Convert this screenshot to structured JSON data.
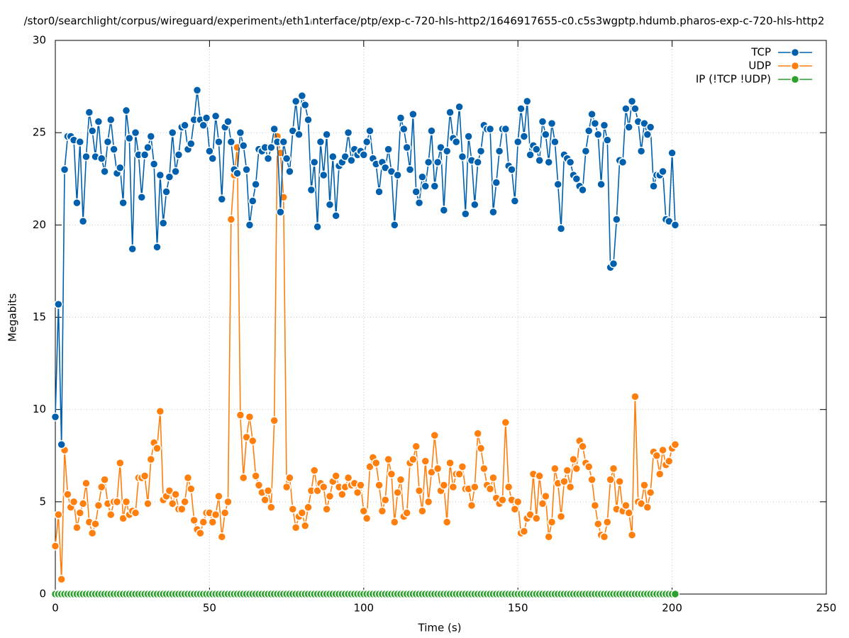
{
  "chart_data": {
    "type": "line",
    "title": "/stor0/searchlight/corpus/wireguard/experiment₃/eth1ᵢnterface/ptp/exp-c-720-hls-http2/1646917655-c0.c5s3wgptp.hdumb.pharos-exp-c-720-hls-http2",
    "x_label": "Time (s)",
    "y_label": "Megabits",
    "x": [
      0,
      1,
      2,
      3,
      4,
      5,
      6,
      7,
      8,
      9,
      10,
      11,
      12,
      13,
      14,
      15,
      16,
      17,
      18,
      19,
      20,
      21,
      22,
      23,
      24,
      25,
      26,
      27,
      28,
      29,
      30,
      31,
      32,
      33,
      34,
      35,
      36,
      37,
      38,
      39,
      40,
      41,
      42,
      43,
      44,
      45,
      46,
      47,
      48,
      49,
      50,
      51,
      52,
      53,
      54,
      55,
      56,
      57,
      58,
      59,
      60,
      61,
      62,
      63,
      64,
      65,
      66,
      67,
      68,
      69,
      70,
      71,
      72,
      73,
      74,
      75,
      76,
      77,
      78,
      79,
      80,
      81,
      82,
      83,
      84,
      85,
      86,
      87,
      88,
      89,
      90,
      91,
      92,
      93,
      94,
      95,
      96,
      97,
      98,
      99,
      100,
      101,
      102,
      103,
      104,
      105,
      106,
      107,
      108,
      109,
      110,
      111,
      112,
      113,
      114,
      115,
      116,
      117,
      118,
      119,
      120,
      121,
      122,
      123,
      124,
      125,
      126,
      127,
      128,
      129,
      130,
      131,
      132,
      133,
      134,
      135,
      136,
      137,
      138,
      139,
      140,
      141,
      142,
      143,
      144,
      145,
      146,
      147,
      148,
      149,
      150,
      151,
      152,
      153,
      154,
      155,
      156,
      157,
      158,
      159,
      160,
      161,
      162,
      163,
      164,
      165,
      166,
      167,
      168,
      169,
      170,
      171,
      172,
      173,
      174,
      175,
      176,
      177,
      178,
      179,
      180,
      181,
      182,
      183,
      184,
      185,
      186,
      187,
      188,
      189,
      190,
      191,
      192,
      193,
      194,
      195,
      196,
      197,
      198,
      199,
      200,
      201
    ],
    "series": [
      {
        "name": "TCP",
        "color": "#0060ad",
        "values": [
          9.6,
          15.7,
          8.1,
          23.0,
          24.8,
          24.8,
          24.6,
          21.2,
          24.5,
          20.2,
          23.7,
          26.1,
          25.1,
          23.7,
          25.6,
          23.6,
          22.9,
          24.5,
          25.7,
          24.1,
          22.8,
          23.1,
          21.2,
          26.2,
          24.7,
          18.7,
          25.0,
          23.8,
          21.5,
          23.8,
          24.2,
          24.8,
          23.3,
          18.8,
          22.7,
          20.1,
          21.8,
          22.6,
          25.0,
          22.9,
          23.8,
          25.3,
          25.4,
          24.1,
          24.4,
          25.7,
          27.3,
          25.7,
          25.4,
          25.8,
          24.0,
          23.6,
          25.9,
          24.5,
          21.4,
          25.3,
          25.6,
          24.5,
          23.0,
          22.8,
          25.0,
          24.3,
          23.0,
          20.0,
          21.3,
          22.2,
          24.1,
          24.0,
          24.2,
          23.6,
          24.2,
          25.2,
          24.5,
          20.7,
          24.5,
          23.6,
          22.9,
          25.1,
          26.7,
          24.9,
          27.0,
          26.5,
          25.7,
          21.9,
          23.4,
          19.9,
          24.5,
          22.7,
          24.9,
          21.1,
          23.7,
          20.5,
          23.2,
          23.4,
          23.7,
          25.0,
          23.5,
          24.1,
          23.8,
          24.0,
          23.8,
          24.5,
          25.1,
          23.6,
          23.3,
          21.8,
          23.4,
          23.1,
          24.1,
          22.9,
          20.0,
          22.7,
          25.8,
          25.2,
          24.2,
          23.0,
          26.0,
          21.8,
          21.2,
          22.6,
          22.1,
          23.4,
          25.1,
          22.1,
          23.4,
          24.2,
          20.8,
          24.0,
          26.1,
          24.7,
          24.5,
          26.4,
          23.7,
          20.6,
          24.8,
          23.5,
          21.1,
          23.4,
          24.0,
          25.4,
          25.2,
          25.2,
          20.7,
          22.3,
          24.0,
          25.2,
          25.2,
          23.2,
          23.0,
          21.3,
          24.5,
          26.3,
          24.8,
          26.7,
          23.8,
          24.3,
          24.1,
          23.5,
          25.6,
          24.9,
          23.4,
          25.5,
          24.5,
          22.2,
          19.8,
          23.8,
          23.6,
          23.4,
          22.7,
          22.5,
          22.1,
          21.9,
          24.0,
          25.1,
          26.0,
          25.5,
          24.9,
          22.2,
          25.4,
          24.6,
          17.7,
          17.9,
          20.3,
          23.5,
          23.4,
          26.3,
          25.3,
          26.7,
          26.3,
          25.6,
          24.0,
          25.5,
          24.9,
          25.3,
          22.1,
          22.7,
          22.7,
          22.9,
          20.3,
          20.2,
          23.9,
          20.0
        ]
      },
      {
        "name": "UDP",
        "color": "#ff7f0e",
        "values": [
          2.6,
          4.3,
          0.8,
          7.8,
          5.4,
          4.7,
          5.0,
          3.6,
          4.4,
          4.9,
          6.0,
          3.9,
          3.3,
          3.8,
          4.8,
          5.8,
          6.2,
          4.9,
          4.3,
          5.0,
          5.0,
          7.1,
          4.1,
          5.0,
          4.3,
          4.5,
          4.4,
          6.3,
          6.3,
          6.4,
          4.9,
          7.3,
          8.2,
          7.9,
          9.9,
          5.1,
          5.3,
          5.6,
          4.9,
          5.4,
          4.6,
          4.6,
          5.0,
          6.3,
          5.7,
          4.0,
          3.5,
          3.3,
          3.9,
          4.4,
          4.4,
          3.9,
          4.3,
          5.3,
          3.1,
          4.4,
          5.0,
          20.3,
          22.7,
          24.2,
          9.7,
          6.3,
          8.5,
          9.6,
          8.3,
          6.4,
          5.9,
          5.5,
          5.1,
          5.6,
          4.7,
          9.4,
          24.8,
          23.9,
          21.5,
          5.8,
          6.3,
          4.6,
          3.6,
          4.2,
          4.4,
          3.7,
          4.7,
          5.6,
          6.7,
          5.6,
          6.0,
          5.8,
          4.6,
          5.3,
          6.1,
          6.4,
          5.8,
          5.4,
          5.8,
          6.3,
          5.9,
          6.0,
          5.5,
          5.9,
          4.5,
          4.1,
          6.9,
          7.4,
          7.1,
          5.9,
          4.5,
          5.1,
          7.3,
          6.5,
          3.9,
          5.5,
          6.2,
          4.2,
          4.4,
          7.1,
          7.3,
          8.0,
          5.6,
          4.5,
          7.2,
          5.0,
          6.6,
          8.6,
          6.8,
          5.6,
          5.9,
          3.9,
          7.1,
          5.8,
          6.5,
          6.5,
          6.9,
          5.7,
          5.7,
          4.8,
          5.8,
          8.7,
          7.9,
          6.8,
          5.9,
          5.7,
          6.3,
          5.2,
          4.9,
          5.1,
          9.3,
          5.8,
          5.1,
          4.6,
          5.0,
          3.3,
          3.4,
          4.1,
          4.3,
          6.5,
          4.1,
          6.4,
          4.9,
          5.3,
          3.1,
          3.9,
          6.8,
          6.0,
          4.2,
          6.1,
          6.7,
          5.8,
          7.3,
          6.8,
          8.3,
          8.0,
          7.1,
          6.9,
          6.2,
          4.8,
          3.8,
          3.2,
          3.1,
          3.9,
          6.2,
          6.8,
          4.6,
          6.1,
          4.5,
          4.8,
          4.4,
          3.2,
          10.7,
          5.0,
          4.9,
          5.9,
          4.7,
          5.5,
          7.7,
          7.5,
          6.5,
          7.8,
          7.0,
          7.2,
          7.9,
          8.1
        ]
      },
      {
        "name": "IP (!TCP  !UDP)",
        "color": "#2ca02c",
        "values": [
          0,
          0,
          0,
          0,
          0,
          0,
          0,
          0,
          0,
          0,
          0,
          0,
          0,
          0,
          0,
          0,
          0,
          0,
          0,
          0,
          0,
          0,
          0,
          0,
          0,
          0,
          0,
          0,
          0,
          0,
          0,
          0,
          0,
          0,
          0,
          0,
          0,
          0,
          0,
          0,
          0,
          0,
          0,
          0,
          0,
          0,
          0,
          0,
          0,
          0,
          0,
          0,
          0,
          0,
          0,
          0,
          0,
          0,
          0,
          0,
          0,
          0,
          0,
          0,
          0,
          0,
          0,
          0,
          0,
          0,
          0,
          0,
          0,
          0,
          0,
          0,
          0,
          0,
          0,
          0,
          0,
          0,
          0,
          0,
          0,
          0,
          0,
          0,
          0,
          0,
          0,
          0,
          0,
          0,
          0,
          0,
          0,
          0,
          0,
          0,
          0,
          0,
          0,
          0,
          0,
          0,
          0,
          0,
          0,
          0,
          0,
          0,
          0,
          0,
          0,
          0,
          0,
          0,
          0,
          0,
          0,
          0,
          0,
          0,
          0,
          0,
          0,
          0,
          0,
          0,
          0,
          0,
          0,
          0,
          0,
          0,
          0,
          0,
          0,
          0,
          0,
          0,
          0,
          0,
          0,
          0,
          0,
          0,
          0,
          0,
          0,
          0,
          0,
          0,
          0,
          0,
          0,
          0,
          0,
          0,
          0,
          0,
          0,
          0,
          0,
          0,
          0,
          0,
          0,
          0,
          0,
          0,
          0,
          0,
          0,
          0,
          0,
          0,
          0,
          0,
          0,
          0,
          0,
          0,
          0,
          0,
          0,
          0,
          0,
          0,
          0,
          0,
          0,
          0,
          0,
          0,
          0,
          0,
          0,
          0,
          0,
          0
        ]
      }
    ],
    "xlim": [
      0,
      250
    ],
    "xticks": [
      0,
      50,
      100,
      150,
      200,
      250
    ],
    "ylim": [
      0,
      30
    ],
    "yticks": [
      0,
      5,
      10,
      15,
      20,
      25,
      30
    ],
    "grid": true,
    "legend": "top-right"
  }
}
